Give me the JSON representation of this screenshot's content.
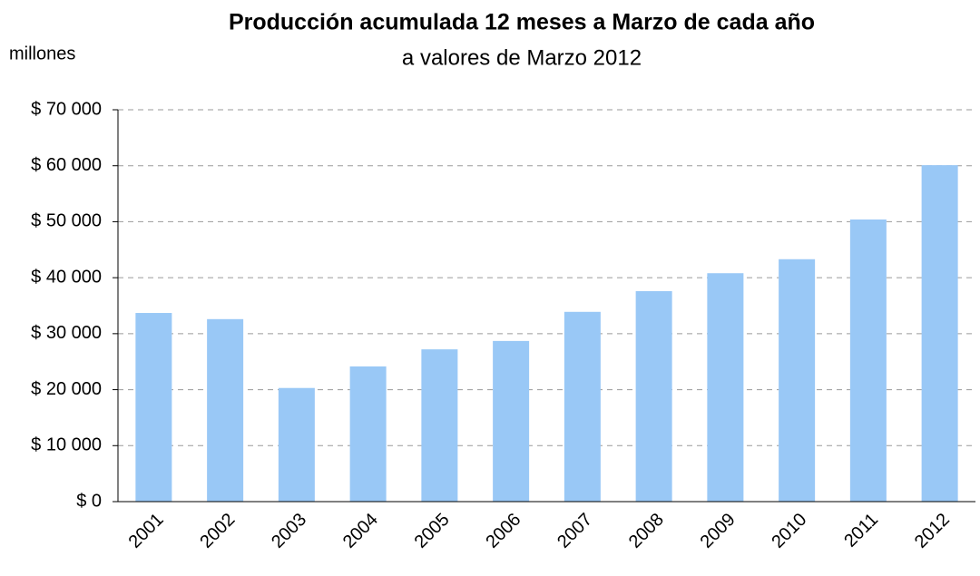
{
  "chart_data": {
    "type": "bar",
    "title": "Producción acumulada 12 meses a Marzo de cada año",
    "subtitle": "a valores de Marzo 2012",
    "y_axis_label": "millones",
    "categories": [
      "2001",
      "2002",
      "2003",
      "2004",
      "2005",
      "2006",
      "2007",
      "2008",
      "2009",
      "2010",
      "2011",
      "2012"
    ],
    "values": [
      33700,
      32600,
      20300,
      24150,
      27200,
      28700,
      33900,
      37600,
      40800,
      43300,
      50400,
      60100
    ],
    "color": "#99c8f6",
    "ylim": [
      0,
      70000
    ],
    "yticks": [
      {
        "value": 0,
        "label": "$ 0"
      },
      {
        "value": 10000,
        "label": "$ 10 000"
      },
      {
        "value": 20000,
        "label": "$ 20 000"
      },
      {
        "value": 30000,
        "label": "$ 30 000"
      },
      {
        "value": 40000,
        "label": "$ 40 000"
      },
      {
        "value": 50000,
        "label": "$ 50 000"
      },
      {
        "value": 60000,
        "label": "$ 60 000"
      },
      {
        "value": 70000,
        "label": "$ 70 000"
      }
    ],
    "grid": true
  }
}
